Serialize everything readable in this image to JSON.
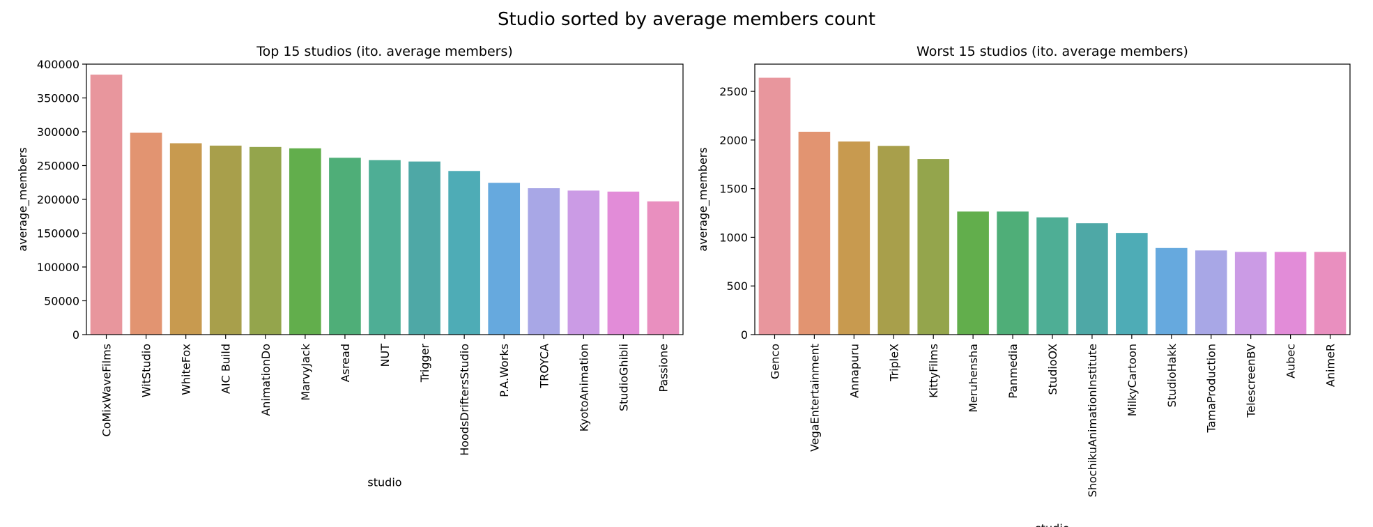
{
  "figure_title": "Studio sorted by average members count",
  "chart_data": [
    {
      "type": "bar",
      "title": "Top 15 studios (ito. average members)",
      "xlabel": "studio",
      "ylabel": "average_members",
      "ylim": [
        0,
        400000
      ],
      "yticks": [
        0,
        50000,
        100000,
        150000,
        200000,
        250000,
        300000,
        350000,
        400000
      ],
      "categories": [
        "CoMixWaveFilms",
        "WitStudio",
        "WhiteFox",
        "AIC Build",
        "AnimationDo",
        "MarvyJack",
        "Asread",
        "NUT",
        "Trigger",
        "HoodsDriftersStudio",
        "P.A.Works",
        "TROYCA",
        "KyotoAnimation",
        "StudioGhibli",
        "Passione"
      ],
      "values": [
        384500,
        298500,
        283000,
        279500,
        277500,
        275500,
        261500,
        258000,
        256000,
        242000,
        224500,
        216500,
        213000,
        211500,
        197000
      ],
      "colors": [
        "#e8969d",
        "#e29471",
        "#c89a4f",
        "#a89f4b",
        "#94a54c",
        "#62ae4c",
        "#4fae78",
        "#4eae95",
        "#4ea8a6",
        "#4eacb6",
        "#66a9de",
        "#a8a7e6",
        "#cb9be5",
        "#e28cd8",
        "#e98fbf"
      ]
    },
    {
      "type": "bar",
      "title": "Worst 15 studios (ito. average members)",
      "xlabel": "studio",
      "ylabel": "average_members",
      "ylim": [
        0,
        2780
      ],
      "yticks": [
        0,
        500,
        1000,
        1500,
        2000,
        2500
      ],
      "categories": [
        "Genco",
        "VegaEntertainment",
        "Annapuru",
        "TripleX",
        "KittyFilms",
        "Meruhensha",
        "Panmedia",
        "StudioOX",
        "ShochikuAnimationInstitute",
        "MilkyCartoon",
        "StudioHakk",
        "TamaProduction",
        "TelescreenBV",
        "Aubec",
        "AnimeR"
      ],
      "values": [
        2640,
        2085,
        1985,
        1940,
        1805,
        1265,
        1265,
        1205,
        1145,
        1045,
        890,
        865,
        850,
        850,
        850
      ],
      "colors": [
        "#e8969d",
        "#e29471",
        "#c89a4f",
        "#a89f4b",
        "#94a54c",
        "#62ae4c",
        "#4fae78",
        "#4eae95",
        "#4ea8a6",
        "#4eacb6",
        "#66a9de",
        "#a8a7e6",
        "#cb9be5",
        "#e28cd8",
        "#e98fbf"
      ]
    }
  ]
}
